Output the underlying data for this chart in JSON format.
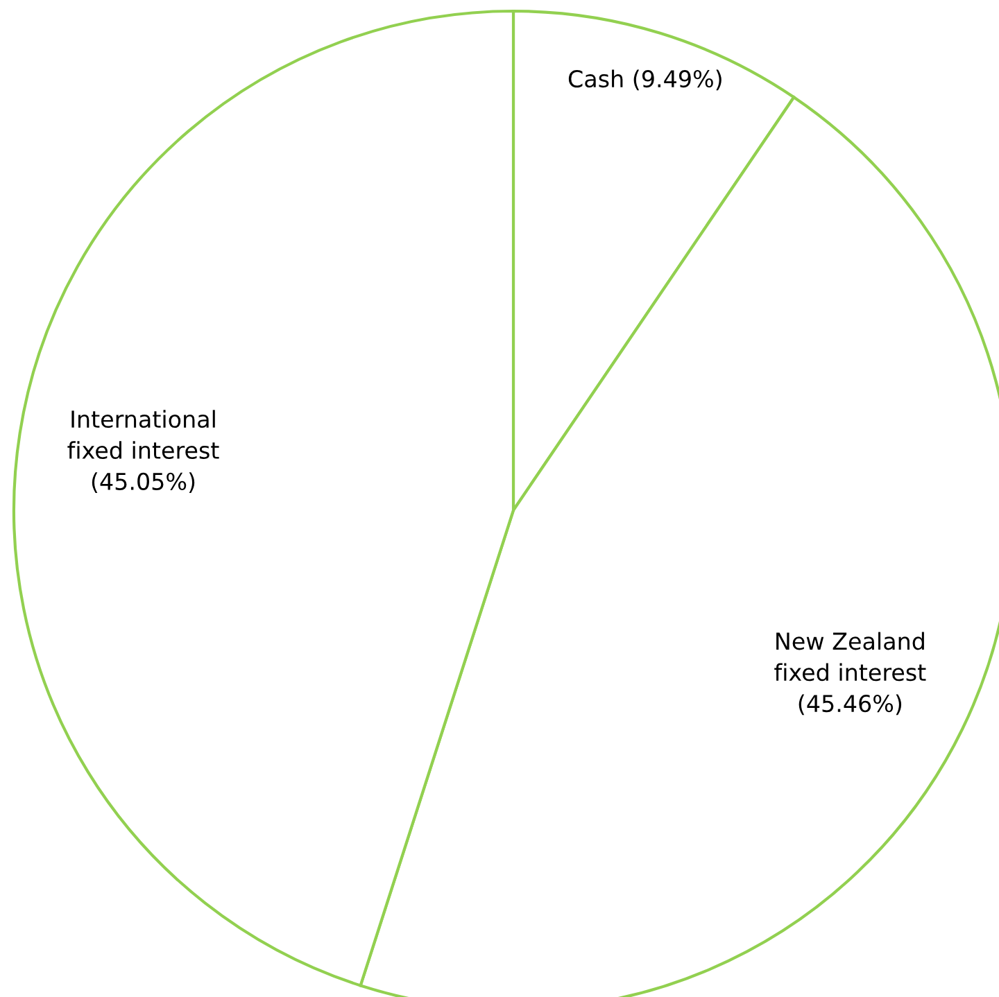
{
  "chart_data": {
    "type": "pie",
    "categories": [
      "Cash (9.49%)",
      "New Zealand\nfixed interest\n(45.46%)",
      "International\nfixed interest\n(45.05%)"
    ],
    "values": [
      9.49,
      45.46,
      45.05
    ],
    "colors": [
      "#ffffff",
      "#ffffff",
      "#ffffff"
    ],
    "color": "#92d050",
    "legend": false
  }
}
